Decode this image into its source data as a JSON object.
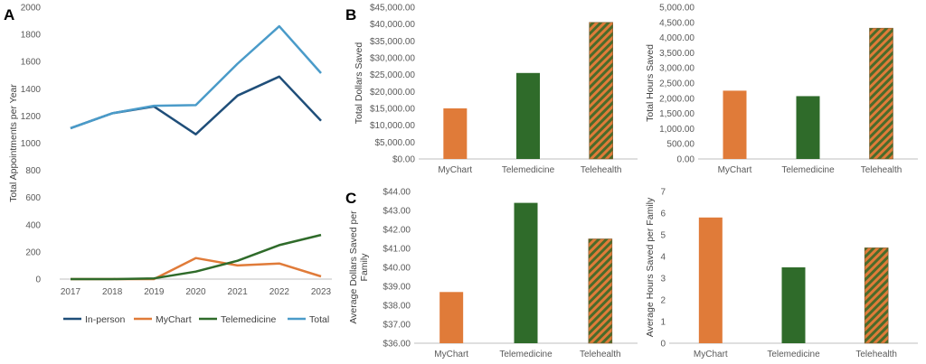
{
  "panel_labels": {
    "a": "A",
    "b": "B",
    "c": "C"
  },
  "colors": {
    "in_person": "#1F4E79",
    "mychart": "#E07B39",
    "telemedicine": "#2F6B2A",
    "total": "#4A9BC9",
    "grid": "#D9D9D9",
    "axis": "#BFBFBF",
    "hatch_a": "#E07B39",
    "hatch_b": "#4A6B2A"
  },
  "chart_data": [
    {
      "id": "A",
      "type": "line",
      "title": "",
      "xlabel": "",
      "ylabel": "Total Appointments per Year",
      "x": [
        "2017",
        "2018",
        "2019",
        "2020",
        "2021",
        "2022",
        "2023"
      ],
      "ylim": [
        0,
        2000
      ],
      "yticks": [
        "0",
        "200",
        "400",
        "600",
        "800",
        "1000",
        "1200",
        "1400",
        "1600",
        "1800",
        "2000"
      ],
      "grid": false,
      "legend": "bottom",
      "series": [
        {
          "name": "In-person",
          "color": "#1F4E79",
          "values": [
            1110,
            1220,
            1270,
            1065,
            1350,
            1490,
            1165
          ]
        },
        {
          "name": "MyChart",
          "color": "#E07B39",
          "values": [
            0,
            0,
            0,
            155,
            100,
            115,
            20
          ]
        },
        {
          "name": "Telemedicine",
          "color": "#2F6B2A",
          "values": [
            0,
            0,
            5,
            55,
            135,
            250,
            325
          ]
        },
        {
          "name": "Total",
          "color": "#4A9BC9",
          "values": [
            1110,
            1220,
            1275,
            1280,
            1585,
            1860,
            1515
          ]
        }
      ]
    },
    {
      "id": "B1",
      "type": "bar",
      "ylabel": "Total Dollars Saved",
      "categories": [
        "MyChart",
        "Telemedicine",
        "Telehealth"
      ],
      "values": [
        15000,
        25500,
        40500
      ],
      "ylim": [
        0,
        45000
      ],
      "yticks": [
        "$0.00",
        "$5,000.00",
        "$10,000.00",
        "$15,000.00",
        "$20,000.00",
        "$25,000.00",
        "$30,000.00",
        "$35,000.00",
        "$40,000.00",
        "$45,000.00"
      ],
      "grid": false
    },
    {
      "id": "B2",
      "type": "bar",
      "ylabel": "Total Hours Saved",
      "categories": [
        "MyChart",
        "Telemedicine",
        "Telehealth"
      ],
      "values": [
        2250,
        2070,
        4310
      ],
      "ylim": [
        0,
        5000
      ],
      "yticks": [
        "0.00",
        "500.00",
        "1,000.00",
        "1,500.00",
        "2,000.00",
        "2,500.00",
        "3,000.00",
        "3,500.00",
        "4,000.00",
        "4,500.00",
        "5,000.00"
      ],
      "grid": false
    },
    {
      "id": "C1",
      "type": "bar",
      "ylabel": "Average Dollars Saved per Family",
      "ylabel_lines": [
        "Average Dollars Saved per",
        "Family"
      ],
      "categories": [
        "MyChart",
        "Telemedicine",
        "Telehealth"
      ],
      "values": [
        38.7,
        43.4,
        41.5
      ],
      "ylim": [
        36,
        44
      ],
      "yticks": [
        "$36.00",
        "$37.00",
        "$38.00",
        "$39.00",
        "$40.00",
        "$41.00",
        "$42.00",
        "$43.00",
        "$44.00"
      ],
      "grid": false
    },
    {
      "id": "C2",
      "type": "bar",
      "ylabel": "Average Hours Saved per Family",
      "categories": [
        "MyChart",
        "Telemedicine",
        "Telehealth"
      ],
      "values": [
        5.8,
        3.5,
        4.4
      ],
      "ylim": [
        0,
        7
      ],
      "yticks": [
        "0",
        "1",
        "2",
        "3",
        "4",
        "5",
        "6",
        "7"
      ],
      "grid": false
    }
  ]
}
